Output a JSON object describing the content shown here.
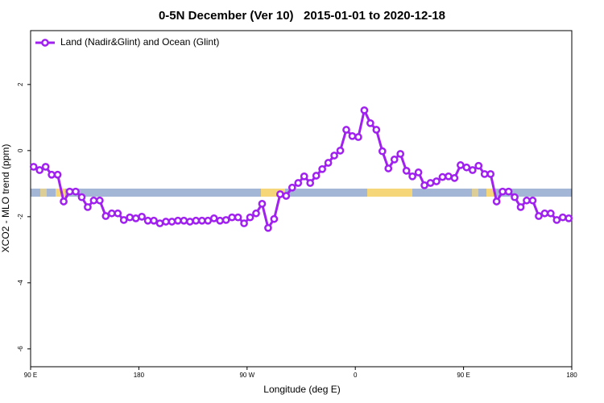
{
  "chart_data": {
    "type": "line",
    "title": "0-5N December (Ver 10)   2015-01-01 to 2020-12-18",
    "x_label": "Longitude (deg E)",
    "y_label": "XCO2 - MLO trend (ppm)",
    "xlim": [
      90,
      540
    ],
    "ylim": [
      -6.54,
      3.63
    ],
    "xticks": [
      {
        "value": 90,
        "label": "90 E"
      },
      180,
      {
        "value": 270,
        "label": "90 W"
      },
      {
        "value": 360,
        "label": "0"
      },
      {
        "value": 450,
        "label": "90 E"
      },
      {
        "value": 540,
        "label": "180"
      }
    ],
    "yticks": [
      -6,
      -4,
      -2,
      0,
      2
    ],
    "legend": "top-left",
    "x": [
      92.5,
      97.5,
      102.5,
      107.5,
      112.5,
      117.5,
      122.5,
      127.5,
      132.5,
      137.5,
      142.5,
      147.5,
      152.5,
      157.5,
      162.5,
      167.5,
      172.5,
      177.5,
      182.5,
      187.5,
      192.5,
      197.5,
      202.5,
      207.5,
      212.5,
      217.5,
      222.5,
      227.5,
      232.5,
      237.5,
      242.5,
      247.5,
      252.5,
      257.5,
      262.5,
      267.5,
      272.5,
      277.5,
      282.5,
      287.5,
      292.5,
      297.5,
      302.5,
      307.5,
      312.5,
      317.5,
      322.5,
      327.5,
      332.5,
      337.5,
      342.5,
      347.5,
      352.5,
      357.5,
      362.5,
      367.5,
      372.5,
      377.5,
      382.5,
      387.5,
      392.5,
      397.5,
      402.5,
      407.5,
      412.5,
      417.5,
      422.5,
      427.5,
      432.5,
      437.5,
      442.5,
      447.5,
      452.5,
      457.5,
      462.5,
      467.5,
      472.5,
      477.5,
      482.5,
      487.5,
      492.5,
      497.5,
      502.5,
      507.5,
      512.5,
      517.5,
      522.5,
      527.5,
      532.5,
      537.5
    ],
    "series": [
      {
        "name": "Land (Nadir&Glint) and Ocean (Glint)",
        "color": "#a020f0",
        "values": [
          -0.49,
          -0.59,
          -0.49,
          -0.73,
          -0.73,
          -1.54,
          -1.24,
          -1.24,
          -1.41,
          -1.71,
          -1.51,
          -1.51,
          -1.98,
          -1.9,
          -1.9,
          -2.1,
          -2.02,
          -2.05,
          -2.0,
          -2.12,
          -2.12,
          -2.2,
          -2.15,
          -2.15,
          -2.12,
          -2.12,
          -2.15,
          -2.12,
          -2.12,
          -2.12,
          -2.05,
          -2.12,
          -2.1,
          -2.02,
          -2.02,
          -2.2,
          -2.02,
          -1.9,
          -1.61,
          -2.34,
          -2.07,
          -1.32,
          -1.37,
          -1.12,
          -0.98,
          -0.78,
          -0.98,
          -0.76,
          -0.56,
          -0.37,
          -0.15,
          0.0,
          0.63,
          0.44,
          0.41,
          1.22,
          0.83,
          0.63,
          -0.02,
          -0.54,
          -0.27,
          -0.1,
          -0.61,
          -0.78,
          -0.66,
          -1.05,
          -0.98,
          -0.93,
          -0.8,
          -0.78,
          -0.83,
          -0.44,
          -0.51,
          -0.59,
          -0.46,
          -0.71,
          -0.71,
          -1.54,
          -1.24,
          -1.24,
          -1.41,
          -1.71,
          -1.51,
          -1.51,
          -1.98,
          -1.9,
          -1.9,
          -2.1,
          -2.02,
          -2.05
        ]
      }
    ]
  }
}
